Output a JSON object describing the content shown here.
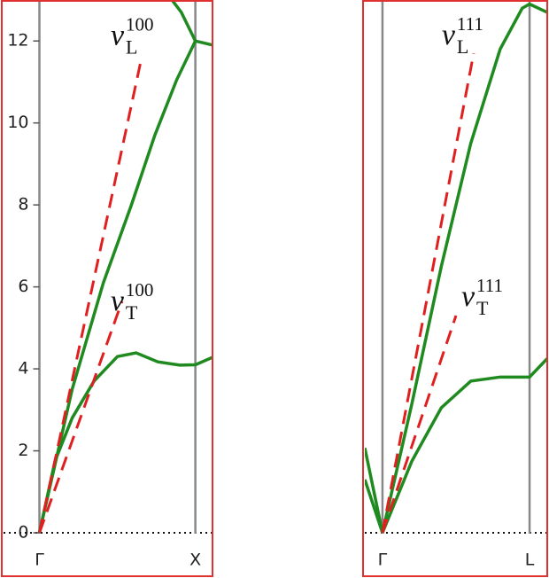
{
  "chart_data": [
    {
      "type": "line",
      "xlim": [
        -0.23,
        1.11
      ],
      "ylim": [
        0,
        13
      ],
      "xticks": [
        {
          "value": 0,
          "label": "Γ"
        },
        {
          "value": 1,
          "label": "X"
        }
      ],
      "yticks": [
        0,
        2,
        4,
        6,
        8,
        10,
        12
      ],
      "series": [
        {
          "color": "#1f8a1f",
          "x": [
            0,
            0.21,
            0.41,
            0.59,
            0.74,
            0.88,
            1,
            1.11
          ],
          "values": [
            0,
            3.5,
            6.1,
            8.0,
            9.7,
            11.05,
            12.0,
            11.9
          ]
        },
        {
          "color": "#1f8a1f",
          "x": [
            0.85,
            0.91,
            1
          ],
          "values": [
            13,
            12.7,
            12.0
          ]
        },
        {
          "color": "#1f8a1f",
          "x": [
            0,
            0.1,
            0.21,
            0.35,
            0.5,
            0.62,
            0.76,
            0.9,
            1,
            1.11
          ],
          "values": [
            0,
            1.75,
            2.8,
            3.7,
            4.3,
            4.39,
            4.17,
            4.09,
            4.1,
            4.28
          ]
        },
        {
          "color": "#e02020",
          "style": "dashed",
          "x": [
            0,
            0.65
          ],
          "values": [
            0,
            11.5
          ],
          "label": {
            "symbol": "v",
            "sub": "L",
            "sup": "100"
          }
        },
        {
          "color": "#e02020",
          "style": "dashed",
          "x": [
            0,
            0.53
          ],
          "values": [
            0,
            5.65
          ],
          "label": {
            "symbol": "v",
            "sub": "T",
            "sup": "100"
          }
        }
      ]
    },
    {
      "type": "line",
      "xlim": [
        -0.12,
        1.12
      ],
      "ylim": [
        0,
        13
      ],
      "xticks": [
        {
          "value": 0,
          "label": "Γ"
        },
        {
          "value": 1,
          "label": "L"
        }
      ],
      "series": [
        {
          "color": "#1f8a1f",
          "x": [
            0,
            0.2,
            0.4,
            0.6,
            0.8,
            0.95,
            1,
            1.12
          ],
          "values": [
            0,
            3.15,
            6.5,
            9.5,
            11.8,
            12.8,
            12.9,
            12.7
          ]
        },
        {
          "color": "#1f8a1f",
          "x": [
            0,
            0.2,
            0.4,
            0.6,
            0.8,
            1,
            1.12
          ],
          "values": [
            0,
            1.75,
            3.05,
            3.7,
            3.8,
            3.8,
            4.25
          ]
        },
        {
          "color": "#1f8a1f",
          "x": [
            -0.12,
            0
          ],
          "values": [
            2.07,
            0
          ]
        },
        {
          "color": "#1f8a1f",
          "x": [
            -0.12,
            0
          ],
          "values": [
            1.3,
            0
          ]
        },
        {
          "color": "#e02020",
          "style": "dashed",
          "x": [
            0,
            0.62
          ],
          "values": [
            0,
            11.7
          ],
          "label": {
            "symbol": "v",
            "sub": "L",
            "sup": "111"
          }
        },
        {
          "color": "#e02020",
          "style": "dashed",
          "x": [
            0,
            0.5
          ],
          "values": [
            0,
            5.3
          ],
          "label": {
            "symbol": "v",
            "sub": "T",
            "sup": "111"
          }
        }
      ]
    }
  ]
}
